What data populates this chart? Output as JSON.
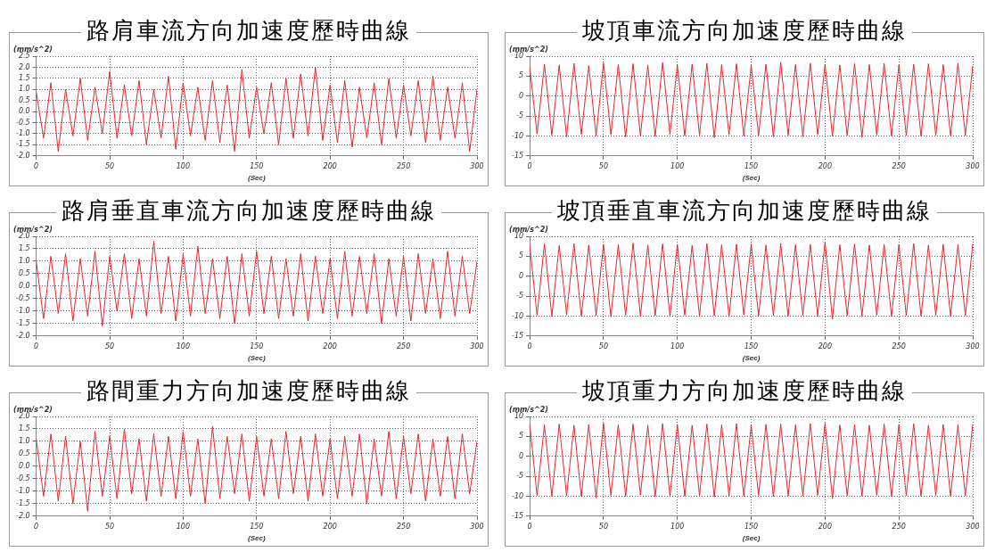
{
  "chart_data": [
    {
      "type": "line",
      "title": "路肩車流方向加速度歷時曲線",
      "xlabel": "(Sec)",
      "ylabel": "(mm/s^2)",
      "grid": true,
      "xlim": [
        0,
        300
      ],
      "xticks": [
        0,
        50,
        100,
        150,
        200,
        250,
        300
      ],
      "ylim": [
        -2,
        2.5
      ],
      "yticks": [
        {
          "value": -2,
          "label": "-2.0"
        },
        {
          "value": -1.5,
          "label": "-1.5"
        },
        {
          "value": -1,
          "label": "-1.0"
        },
        {
          "value": -0.5,
          "label": "-0.5"
        },
        {
          "value": 0,
          "label": "0.0"
        },
        {
          "value": 0.5,
          "label": "0.5"
        },
        {
          "value": 1,
          "label": "1.0"
        },
        {
          "value": 1.5,
          "label": "1.5"
        },
        {
          "value": 2,
          "label": "2.0"
        },
        {
          "value": 2.5,
          "label": "2.5"
        }
      ],
      "x": [
        0,
        5,
        10,
        15,
        20,
        25,
        30,
        35,
        40,
        45,
        50,
        55,
        60,
        65,
        70,
        75,
        80,
        85,
        90,
        95,
        100,
        105,
        110,
        115,
        120,
        125,
        130,
        135,
        140,
        145,
        150,
        155,
        160,
        165,
        170,
        175,
        180,
        185,
        190,
        195,
        200,
        205,
        210,
        215,
        220,
        225,
        230,
        235,
        240,
        245,
        250,
        255,
        260,
        265,
        270,
        275,
        280,
        285,
        290,
        295,
        300
      ],
      "series": [
        {
          "color": "#e8262a",
          "values": [
            0.9,
            -1.2,
            1.3,
            -1.8,
            1.0,
            -1.1,
            1.5,
            -1.3,
            1.1,
            -1.0,
            1.8,
            -1.2,
            1.2,
            -1.1,
            1.4,
            -1.5,
            1.0,
            -1.2,
            1.6,
            -1.7,
            1.3,
            -1.1,
            1.1,
            -1.3,
            1.4,
            -1.4,
            1.2,
            -1.8,
            1.9,
            -1.2,
            1.1,
            -1.0,
            1.3,
            -1.5,
            1.5,
            -1.2,
            1.7,
            -1.1,
            2.0,
            -1.3,
            1.2,
            -1.4,
            1.4,
            -1.6,
            1.1,
            -1.2,
            1.3,
            -1.5,
            1.5,
            -1.2,
            1.2,
            -1.1,
            1.4,
            -1.4,
            1.6,
            -1.3,
            1.1,
            -1.2,
            1.3,
            -1.8,
            1.0
          ]
        }
      ]
    },
    {
      "type": "line",
      "title": "坡頂車流方向加速度歷時曲線",
      "xlabel": "(Sec)",
      "ylabel": "(mm/s^2)",
      "grid": true,
      "xlim": [
        0,
        300
      ],
      "xticks": [
        0,
        50,
        100,
        150,
        200,
        250,
        300
      ],
      "ylim": [
        -15,
        10
      ],
      "yticks": [
        -15,
        -10,
        -5,
        0,
        5,
        10
      ],
      "x": [
        0,
        5,
        10,
        15,
        20,
        25,
        30,
        35,
        40,
        45,
        50,
        55,
        60,
        65,
        70,
        75,
        80,
        85,
        90,
        95,
        100,
        105,
        110,
        115,
        120,
        125,
        130,
        135,
        140,
        145,
        150,
        155,
        160,
        165,
        170,
        175,
        180,
        185,
        190,
        195,
        200,
        205,
        210,
        215,
        220,
        225,
        230,
        235,
        240,
        245,
        250,
        255,
        260,
        265,
        270,
        275,
        280,
        285,
        290,
        295,
        300
      ],
      "series": [
        {
          "color": "#e8262a",
          "values": [
            7.5,
            -9.5,
            8.0,
            -9.8,
            7.8,
            -10.2,
            8.2,
            -9.6,
            7.6,
            -10.0,
            8.3,
            -9.7,
            7.9,
            -10.3,
            8.1,
            -9.9,
            7.7,
            -10.1,
            8.4,
            -9.6,
            7.8,
            -10.0,
            8.0,
            -9.8,
            8.2,
            -10.4,
            7.9,
            -9.7,
            8.1,
            -10.0,
            7.7,
            -9.9,
            8.0,
            -10.2,
            8.5,
            -9.8,
            7.9,
            -10.1,
            8.2,
            -9.7,
            8.0,
            -10.0,
            7.8,
            -9.9,
            8.1,
            -10.3,
            7.9,
            -9.8,
            8.2,
            -10.0,
            7.8,
            -9.9,
            8.0,
            -10.1,
            8.1,
            -9.8,
            7.9,
            -10.0,
            8.2,
            -9.9,
            7.6
          ]
        }
      ]
    },
    {
      "type": "line",
      "title": "路肩垂直車流方向加速度歷時曲線",
      "xlabel": "(Sec)",
      "ylabel": "(mm/s^2)",
      "grid": true,
      "xlim": [
        0,
        300
      ],
      "xticks": [
        0,
        50,
        100,
        150,
        200,
        250,
        300
      ],
      "ylim": [
        -2,
        2
      ],
      "yticks": [
        {
          "value": -2,
          "label": "-2.0"
        },
        {
          "value": -1.5,
          "label": "-1.5"
        },
        {
          "value": -1,
          "label": "-1.0"
        },
        {
          "value": -0.5,
          "label": "-0.5"
        },
        {
          "value": 0,
          "label": "0.0"
        },
        {
          "value": 0.5,
          "label": "0.5"
        },
        {
          "value": 1,
          "label": "1.0"
        },
        {
          "value": 1.5,
          "label": "1.5"
        },
        {
          "value": 2,
          "label": "2.0"
        }
      ],
      "x": [
        0,
        5,
        10,
        15,
        20,
        25,
        30,
        35,
        40,
        45,
        50,
        55,
        60,
        65,
        70,
        75,
        80,
        85,
        90,
        95,
        100,
        105,
        110,
        115,
        120,
        125,
        130,
        135,
        140,
        145,
        150,
        155,
        160,
        165,
        170,
        175,
        180,
        185,
        190,
        195,
        200,
        205,
        210,
        215,
        220,
        225,
        230,
        235,
        240,
        245,
        250,
        255,
        260,
        265,
        270,
        275,
        280,
        285,
        290,
        295,
        300
      ],
      "series": [
        {
          "color": "#e8262a",
          "values": [
            1.0,
            -1.3,
            1.2,
            -1.1,
            1.3,
            -1.4,
            1.1,
            -1.2,
            1.4,
            -1.6,
            1.2,
            -1.0,
            1.3,
            -1.3,
            1.1,
            -1.2,
            1.8,
            -1.1,
            1.2,
            -1.4,
            1.3,
            -1.2,
            1.6,
            -1.1,
            1.1,
            -1.3,
            1.2,
            -1.5,
            1.3,
            -1.2,
            1.4,
            -1.1,
            1.2,
            -1.3,
            1.1,
            -1.2,
            1.3,
            -1.4,
            1.2,
            -1.1,
            1.1,
            -1.3,
            1.4,
            -1.2,
            1.2,
            -1.1,
            1.3,
            -1.5,
            1.1,
            -1.2,
            1.2,
            -1.4,
            1.3,
            -1.1,
            1.1,
            -1.3,
            1.4,
            -1.2,
            1.2,
            -1.1,
            1.0
          ]
        }
      ]
    },
    {
      "type": "line",
      "title": "坡頂垂直車流方向加速度歷時曲線",
      "xlabel": "(Sec)",
      "ylabel": "(mm/s^2)",
      "grid": true,
      "xlim": [
        0,
        300
      ],
      "xticks": [
        0,
        50,
        100,
        150,
        200,
        250,
        300
      ],
      "ylim": [
        -15,
        10
      ],
      "yticks": [
        -15,
        -10,
        -5,
        0,
        5,
        10
      ],
      "x": [
        0,
        5,
        10,
        15,
        20,
        25,
        30,
        35,
        40,
        45,
        50,
        55,
        60,
        65,
        70,
        75,
        80,
        85,
        90,
        95,
        100,
        105,
        110,
        115,
        120,
        125,
        130,
        135,
        140,
        145,
        150,
        155,
        160,
        165,
        170,
        175,
        180,
        185,
        190,
        195,
        200,
        205,
        210,
        215,
        220,
        225,
        230,
        235,
        240,
        245,
        250,
        255,
        260,
        265,
        270,
        275,
        280,
        285,
        290,
        295,
        300
      ],
      "series": [
        {
          "color": "#e8262a",
          "values": [
            7.9,
            -9.8,
            8.1,
            -10.0,
            7.7,
            -9.7,
            8.2,
            -10.1,
            7.8,
            -9.9,
            8.0,
            -10.2,
            7.9,
            -9.8,
            8.3,
            -10.0,
            7.8,
            -9.9,
            8.1,
            -10.1,
            8.0,
            -9.8,
            7.7,
            -10.0,
            8.2,
            -9.9,
            7.9,
            -10.2,
            8.0,
            -9.7,
            8.1,
            -10.0,
            7.8,
            -9.9,
            8.2,
            -10.1,
            7.9,
            -9.8,
            8.0,
            -10.0,
            8.6,
            -10.8,
            7.9,
            -9.9,
            8.1,
            -10.0,
            7.8,
            -9.8,
            8.0,
            -10.1,
            7.9,
            -9.9,
            8.2,
            -10.0,
            7.8,
            -9.8,
            8.0,
            -10.0,
            7.9,
            -9.9,
            8.1
          ]
        }
      ]
    },
    {
      "type": "line",
      "title": "路間重力方向加速度歷時曲線",
      "xlabel": "(Sec)",
      "ylabel": "(mm/s^2)",
      "grid": true,
      "xlim": [
        0,
        300
      ],
      "xticks": [
        0,
        50,
        100,
        150,
        200,
        250,
        300
      ],
      "ylim": [
        -2,
        2
      ],
      "yticks": [
        {
          "value": -2,
          "label": "-2.0"
        },
        {
          "value": -1.5,
          "label": "-1.5"
        },
        {
          "value": -1,
          "label": "-1.0"
        },
        {
          "value": -0.5,
          "label": "-0.5"
        },
        {
          "value": 0,
          "label": "0.0"
        },
        {
          "value": 0.5,
          "label": "0.5"
        },
        {
          "value": 1,
          "label": "1.0"
        },
        {
          "value": 1.5,
          "label": "1.5"
        },
        {
          "value": 2,
          "label": "2.0"
        }
      ],
      "x": [
        0,
        5,
        10,
        15,
        20,
        25,
        30,
        35,
        40,
        45,
        50,
        55,
        60,
        65,
        70,
        75,
        80,
        85,
        90,
        95,
        100,
        105,
        110,
        115,
        120,
        125,
        130,
        135,
        140,
        145,
        150,
        155,
        160,
        165,
        170,
        175,
        180,
        185,
        190,
        195,
        200,
        205,
        210,
        215,
        220,
        225,
        230,
        235,
        240,
        245,
        250,
        255,
        260,
        265,
        270,
        275,
        280,
        285,
        290,
        295,
        300
      ],
      "series": [
        {
          "color": "#e8262a",
          "values": [
            1.1,
            -1.2,
            1.3,
            -1.4,
            1.2,
            -1.5,
            1.0,
            -1.8,
            1.4,
            -1.2,
            1.2,
            -1.3,
            1.5,
            -1.1,
            1.1,
            -1.4,
            1.3,
            -1.2,
            1.2,
            -1.3,
            1.4,
            -1.2,
            1.1,
            -1.5,
            1.6,
            -1.3,
            1.2,
            -1.1,
            1.3,
            -1.4,
            1.2,
            -1.2,
            1.1,
            -1.3,
            1.4,
            -1.1,
            1.2,
            -1.4,
            1.3,
            -1.2,
            1.1,
            -1.3,
            1.2,
            -1.2,
            1.3,
            -1.5,
            1.1,
            -1.2,
            1.4,
            -1.3,
            1.2,
            -1.1,
            1.3,
            -1.4,
            1.1,
            -1.2,
            1.2,
            -1.3,
            1.3,
            -1.1,
            1.0
          ]
        }
      ]
    },
    {
      "type": "line",
      "title": "坡頂重力方向加速度歷時曲線",
      "xlabel": "(Sec)",
      "ylabel": "(mm/s^2)",
      "grid": true,
      "xlim": [
        0,
        300
      ],
      "xticks": [
        0,
        50,
        100,
        150,
        200,
        250,
        300
      ],
      "ylim": [
        -15,
        10
      ],
      "yticks": [
        -15,
        -10,
        -5,
        0,
        5,
        10
      ],
      "x": [
        0,
        5,
        10,
        15,
        20,
        25,
        30,
        35,
        40,
        45,
        50,
        55,
        60,
        65,
        70,
        75,
        80,
        85,
        90,
        95,
        100,
        105,
        110,
        115,
        120,
        125,
        130,
        135,
        140,
        145,
        150,
        155,
        160,
        165,
        170,
        175,
        180,
        185,
        190,
        195,
        200,
        205,
        210,
        215,
        220,
        225,
        230,
        235,
        240,
        245,
        250,
        255,
        260,
        265,
        270,
        275,
        280,
        285,
        290,
        295,
        300
      ],
      "series": [
        {
          "color": "#e8262a",
          "values": [
            8.2,
            -9.8,
            7.9,
            -10.0,
            8.1,
            -9.9,
            7.8,
            -10.1,
            8.0,
            -10.4,
            8.3,
            -9.8,
            7.9,
            -10.0,
            8.1,
            -9.7,
            7.8,
            -10.1,
            8.2,
            -9.9,
            8.0,
            -10.0,
            7.8,
            -9.8,
            8.1,
            -10.2,
            7.9,
            -9.9,
            8.2,
            -10.0,
            7.8,
            -9.8,
            8.0,
            -10.1,
            8.1,
            -9.9,
            7.9,
            -10.0,
            8.2,
            -9.8,
            8.3,
            -10.6,
            7.9,
            -9.9,
            8.0,
            -10.0,
            7.8,
            -9.8,
            8.1,
            -10.1,
            7.9,
            -9.9,
            8.2,
            -10.0,
            7.8,
            -9.8,
            8.0,
            -10.0,
            7.9,
            -9.9,
            8.1
          ]
        }
      ]
    }
  ]
}
